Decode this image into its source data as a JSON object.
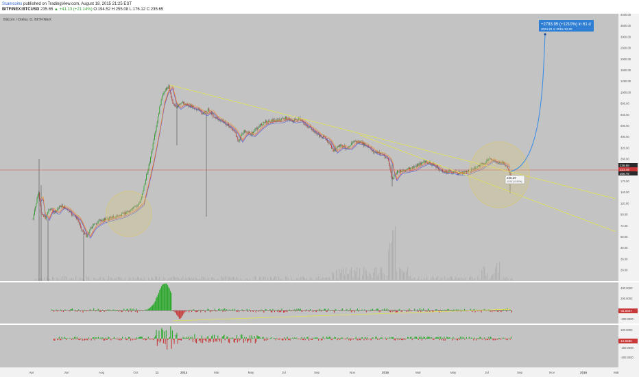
{
  "header": {
    "author": "Scamcoins",
    "published_text": " published on TradingView.com, August 18, 2015 21:25 EST",
    "symbol": "BITFINEX:BTCUSD",
    "last": "235.65",
    "change": "▲ +41.13 (+21.14%)",
    "open": "O:194.52",
    "high": "H:255.08",
    "low": "L:176.12",
    "close": "C:235.65"
  },
  "chart": {
    "legend": "Bitcoin / Dollar, D, BITFINEX",
    "price_labels": [
      "4400.00",
      "3600.00",
      "3000.00",
      "2500.00",
      "2000.00",
      "1600.00",
      "1250.00",
      "1000.00",
      "800.00",
      "640.00",
      "500.00",
      "400.00",
      "320.00",
      "260.00",
      "210.00",
      "170.00",
      "140.00",
      "110.00",
      "90.00",
      "72.00",
      "58.00",
      "46.00",
      "36.00",
      "28.00"
    ],
    "current_price": "235.65",
    "price_marks": [
      "238.88",
      "223.48",
      "205.78"
    ],
    "annotation_line1": "+2793.95 (+1210%) in 61 d",
    "annotation_line2": "3024.20  ⊙ 2015-10-20",
    "tooltip": [
      "235.29",
      "-0.00 (-0.00%)"
    ],
    "osc1_labels": [
      "400.0000",
      "200.0000",
      "-200.0000"
    ],
    "osc1_value": "-31.6347",
    "osc2_labels": [
      "100.0000",
      "-100.0000",
      "-200.0000"
    ],
    "osc2_value": "-12.8486",
    "time_labels": [
      "Apr",
      "Jun",
      "Aug",
      "Oct",
      "11",
      "2014",
      "Mar",
      "May",
      "Jul",
      "Sep",
      "Nov",
      "2015",
      "Mar",
      "May",
      "Jul",
      "Sep",
      "Nov",
      "2016",
      "Mar"
    ],
    "colors": {
      "panel": "#c3c3c3",
      "trendline": "#e8e840",
      "projection": "#3a8ee6",
      "horizontal": "#e0413a",
      "up": "#28a828",
      "down": "#c83838",
      "ema_blue": "#4b58d6",
      "ema_red": "#d44e4e",
      "ema_orange": "#e49a3a",
      "circle": "#d8c87a"
    }
  }
}
